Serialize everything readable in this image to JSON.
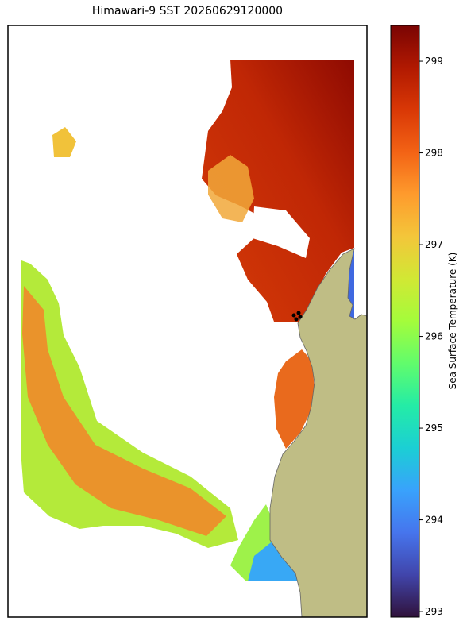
{
  "title": "Himawari-9 SST 20260629120000",
  "colorbar": {
    "label": "Sea Surface Temperature (K)",
    "lim": [
      292.94,
      299.39
    ],
    "ticks": [
      293,
      294,
      295,
      296,
      297,
      298,
      299
    ],
    "colormap": [
      "#30123b",
      "#4145ab",
      "#4675ed",
      "#39a2fc",
      "#1bcfd4",
      "#24eca6",
      "#61fc6c",
      "#a4fc3b",
      "#d1e834",
      "#f3c63a",
      "#fe9b2d",
      "#f36315",
      "#d93806",
      "#b11901",
      "#7a0403"
    ]
  }
}
